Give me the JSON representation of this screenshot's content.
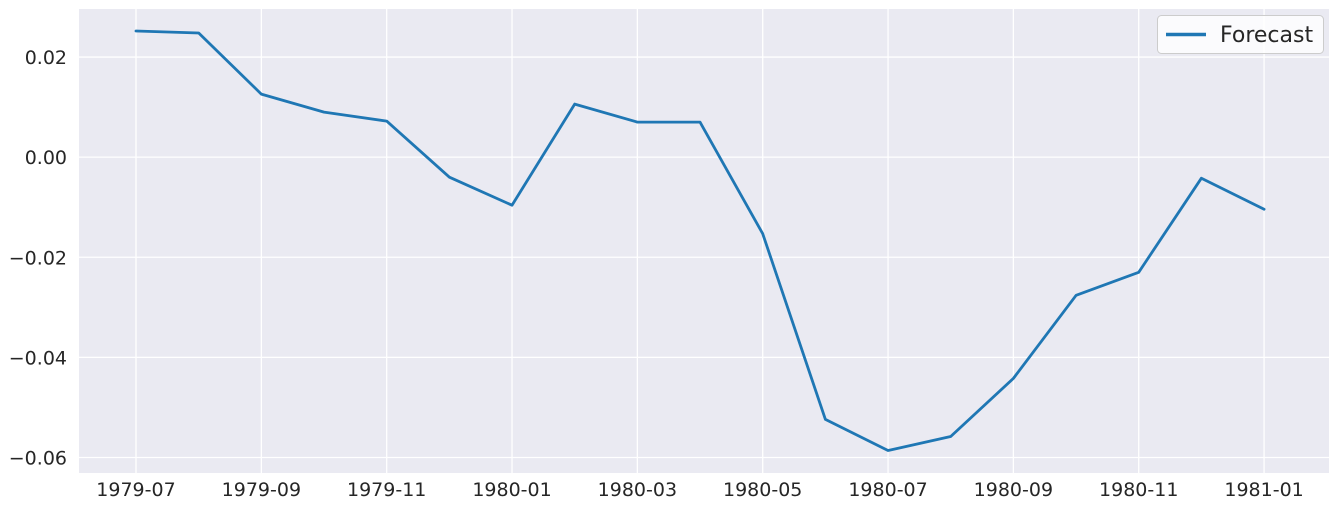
{
  "figure": {
    "background_color": "#ffffff",
    "plot_background_color": "#eaeaf2",
    "grid_color": "#ffffff",
    "tick_label_color": "#262626",
    "legend": {
      "label": "Forecast",
      "line_color": "#1f77b4",
      "border_color": "#cccccc",
      "background_color": "rgba(255,255,255,0.8)",
      "text_color": "#262626",
      "position": "upper right"
    }
  },
  "chart_data": {
    "type": "line",
    "title": "",
    "xlabel": "",
    "ylabel": "",
    "grid": true,
    "legend_position": "upper right",
    "x": [
      "1979-07",
      "1979-08",
      "1979-09",
      "1979-10",
      "1979-11",
      "1979-12",
      "1980-01",
      "1980-02",
      "1980-03",
      "1980-04",
      "1980-05",
      "1980-06",
      "1980-07",
      "1980-08",
      "1980-09",
      "1980-10",
      "1980-11",
      "1980-12",
      "1981-01"
    ],
    "series": [
      {
        "name": "Forecast",
        "color": "#1f77b4",
        "values": [
          0.0252,
          0.0248,
          0.0126,
          0.009,
          0.0072,
          -0.004,
          -0.0096,
          0.0106,
          0.007,
          0.007,
          -0.0153,
          -0.0524,
          -0.0586,
          -0.0558,
          -0.0442,
          -0.0276,
          -0.023,
          -0.0042,
          -0.0104
        ]
      }
    ],
    "xtick_indices": [
      0,
      2,
      4,
      6,
      8,
      10,
      12,
      14,
      16,
      18
    ],
    "xtick_labels": [
      "1979-07",
      "1979-09",
      "1979-11",
      "1980-01",
      "1980-03",
      "1980-05",
      "1980-07",
      "1980-09",
      "1980-11",
      "1981-01"
    ],
    "ytick_values": [
      0.02,
      0.0,
      -0.02,
      -0.04,
      -0.06
    ],
    "ytick_labels": [
      "0.02",
      "0.00",
      "−0.02",
      "−0.04",
      "−0.06"
    ],
    "ylim": [
      -0.0631,
      0.0296
    ]
  }
}
